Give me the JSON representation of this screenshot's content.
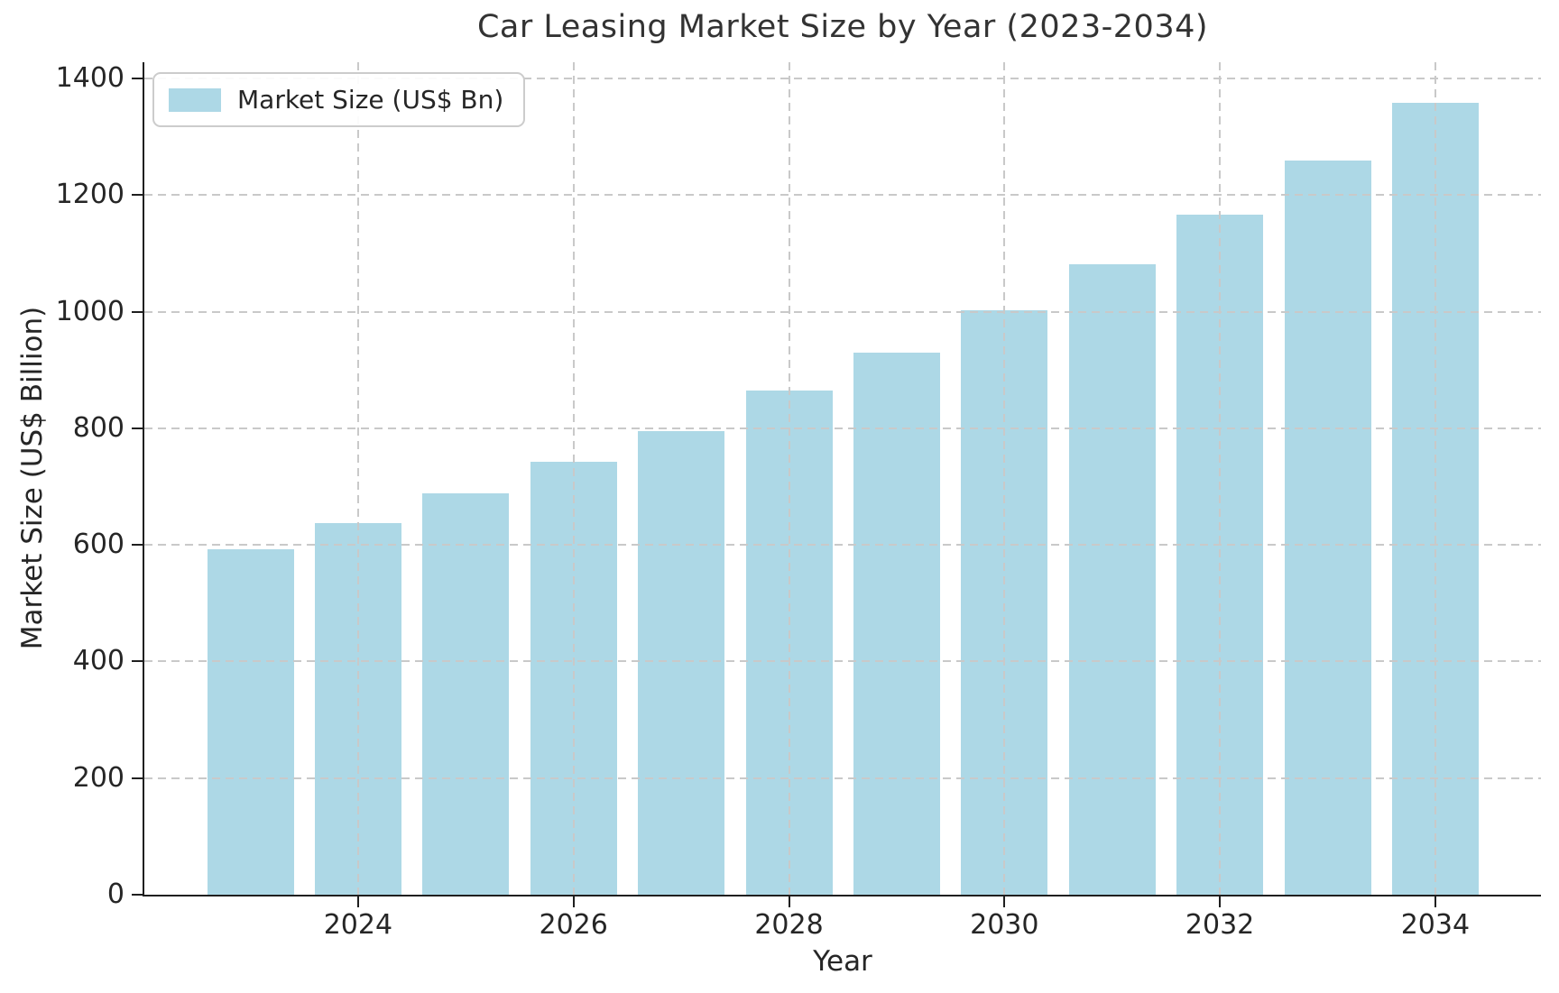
{
  "title": "Car Leasing Market Size by Year (2023-2034)",
  "legend": {
    "label": "Market Size (US$ Bn)",
    "swatch_color": "#ADD8E6"
  },
  "axes": {
    "xlabel": "Year",
    "ylabel": "Market Size (US$ Billion)",
    "y_tick_labels": [
      "0",
      "200",
      "400",
      "600",
      "800",
      "1000",
      "1200",
      "1400"
    ],
    "x_tick_labels": [
      "2024",
      "2026",
      "2028",
      "2030",
      "2032",
      "2034"
    ]
  },
  "colors": {
    "bar": "#ADD8E6",
    "grid": "#c9c9c9",
    "spine": "#1f1f1f",
    "text": "#262626"
  },
  "chart_data": {
    "type": "bar",
    "title": "Car Leasing Market Size by Year (2023-2034)",
    "series_name": "Market Size (US$ Bn)",
    "categories": [
      2023,
      2024,
      2025,
      2026,
      2027,
      2028,
      2029,
      2030,
      2031,
      2032,
      2033,
      2034
    ],
    "values": [
      592,
      638,
      688,
      742,
      796,
      865,
      930,
      1003,
      1082,
      1167,
      1259,
      1359
    ],
    "xlabel": "Year",
    "ylabel": "Market Size (US$ Billion)",
    "ylim": [
      0,
      1428
    ],
    "y_ticks": [
      0,
      200,
      400,
      600,
      800,
      1000,
      1200,
      1400
    ],
    "x_ticks": [
      2024,
      2026,
      2028,
      2030,
      2032,
      2034
    ],
    "grid": true,
    "grid_style": "dashed",
    "grid_above_bars": true,
    "legend_position": "upper left",
    "bar_color": "#ADD8E6"
  }
}
